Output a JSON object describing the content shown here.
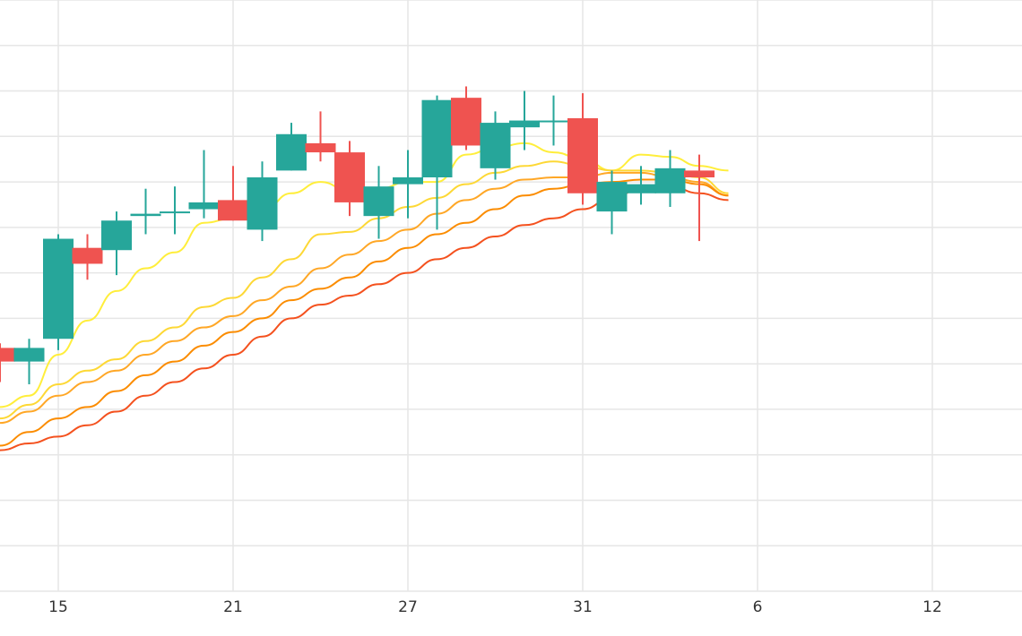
{
  "chart_data": {
    "type": "candlestick",
    "title": "",
    "xlabel": "",
    "ylabel": "",
    "ylim": [
      0,
      13
    ],
    "grid": true,
    "colors": {
      "up": "#26a69a",
      "down": "#ef5350",
      "grid": "#e6e6e6"
    },
    "x_ticks": [
      {
        "label": "15",
        "index": 2
      },
      {
        "label": "21",
        "index": 8
      },
      {
        "label": "27",
        "index": 14
      },
      {
        "label": "31",
        "index": 20
      },
      {
        "label": "6",
        "index": 26
      },
      {
        "label": "12",
        "index": 32
      }
    ],
    "candles": [
      {
        "open": 5.35,
        "close": 5.05,
        "high": 5.45,
        "low": 4.6
      },
      {
        "open": 5.05,
        "close": 5.35,
        "high": 5.55,
        "low": 4.55
      },
      {
        "open": 5.55,
        "close": 7.75,
        "high": 7.85,
        "low": 5.3
      },
      {
        "open": 7.55,
        "close": 7.2,
        "high": 7.85,
        "low": 6.85
      },
      {
        "open": 7.5,
        "close": 8.15,
        "high": 8.35,
        "low": 6.95
      },
      {
        "open": 8.25,
        "close": 8.3,
        "high": 8.85,
        "low": 7.85
      },
      {
        "open": 8.35,
        "close": 8.35,
        "high": 8.9,
        "low": 7.85
      },
      {
        "open": 8.4,
        "close": 8.55,
        "high": 9.7,
        "low": 8.2
      },
      {
        "open": 8.6,
        "close": 8.15,
        "high": 9.35,
        "low": 8.15
      },
      {
        "open": 7.95,
        "close": 9.1,
        "high": 9.45,
        "low": 7.7
      },
      {
        "open": 9.25,
        "close": 10.05,
        "high": 10.3,
        "low": 9.25
      },
      {
        "open": 9.85,
        "close": 9.65,
        "high": 10.55,
        "low": 9.45
      },
      {
        "open": 9.65,
        "close": 8.55,
        "high": 9.9,
        "low": 8.25
      },
      {
        "open": 8.25,
        "close": 8.9,
        "high": 9.35,
        "low": 7.75
      },
      {
        "open": 8.95,
        "close": 9.1,
        "high": 9.7,
        "low": 8.2
      },
      {
        "open": 9.1,
        "close": 10.8,
        "high": 10.9,
        "low": 7.95
      },
      {
        "open": 10.85,
        "close": 9.8,
        "high": 11.1,
        "low": 9.7
      },
      {
        "open": 9.3,
        "close": 10.3,
        "high": 10.55,
        "low": 9.05
      },
      {
        "open": 10.2,
        "close": 10.35,
        "high": 11,
        "low": 9.7
      },
      {
        "open": 10.35,
        "close": 10.35,
        "high": 10.9,
        "low": 9.8
      },
      {
        "open": 10.4,
        "close": 8.75,
        "high": 10.95,
        "low": 8.5
      },
      {
        "open": 8.35,
        "close": 9,
        "high": 9.25,
        "low": 7.85
      },
      {
        "open": 8.75,
        "close": 8.95,
        "high": 9.35,
        "low": 8.5
      },
      {
        "open": 8.75,
        "close": 9.3,
        "high": 9.7,
        "low": 8.45
      },
      {
        "open": 9.25,
        "close": 9.1,
        "high": 9.6,
        "low": 7.7
      }
    ],
    "series": [
      {
        "color": "#ffee3b",
        "values": [
          4.05,
          4.3,
          5.2,
          5.95,
          6.6,
          7.1,
          7.45,
          8.1,
          8.2,
          8.35,
          8.75,
          9.0,
          8.8,
          8.85,
          9.0,
          9.0,
          9.6,
          9.75,
          9.85,
          9.65,
          9.5,
          9.25,
          9.6,
          9.55,
          9.35,
          9.25
        ]
      },
      {
        "color": "#fdd835",
        "values": [
          3.8,
          4.1,
          4.55,
          4.85,
          5.1,
          5.5,
          5.8,
          6.25,
          6.45,
          6.9,
          7.3,
          7.85,
          7.9,
          8.2,
          8.45,
          8.65,
          8.95,
          9.2,
          9.35,
          9.45,
          9.35,
          9.25,
          9.25,
          9.2,
          9.1,
          8.75
        ]
      },
      {
        "color": "#ffa726",
        "values": [
          3.7,
          3.95,
          4.3,
          4.6,
          4.85,
          5.2,
          5.5,
          5.8,
          6.05,
          6.4,
          6.7,
          7.1,
          7.4,
          7.7,
          7.95,
          8.3,
          8.6,
          8.85,
          9.05,
          9.1,
          9.1,
          9.2,
          9.2,
          9.1,
          9.0,
          8.7
        ]
      },
      {
        "color": "#fb8c00",
        "values": [
          3.2,
          3.5,
          3.8,
          4.05,
          4.4,
          4.75,
          5.05,
          5.4,
          5.7,
          6.0,
          6.4,
          6.65,
          6.9,
          7.25,
          7.55,
          7.85,
          8.1,
          8.4,
          8.7,
          8.85,
          8.95,
          9.0,
          9.05,
          9.05,
          8.95,
          8.7
        ]
      },
      {
        "color": "#f4511e",
        "values": [
          3.1,
          3.25,
          3.4,
          3.65,
          3.95,
          4.3,
          4.6,
          4.9,
          5.2,
          5.6,
          6.0,
          6.3,
          6.5,
          6.75,
          7.0,
          7.3,
          7.55,
          7.8,
          8.05,
          8.2,
          8.4,
          8.65,
          8.85,
          8.9,
          8.75,
          8.6
        ]
      }
    ]
  }
}
